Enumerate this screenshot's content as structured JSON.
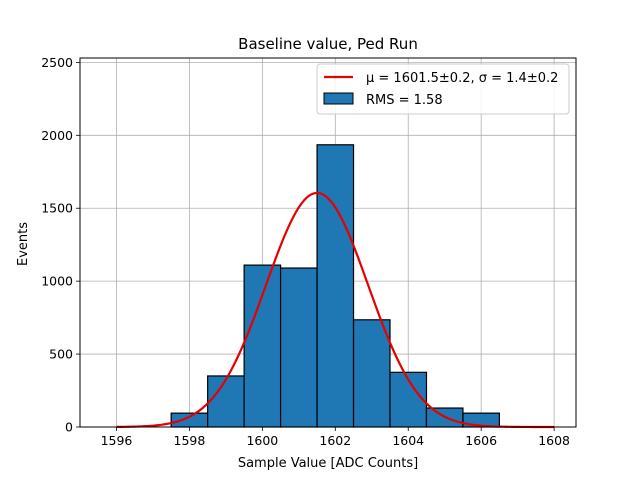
{
  "chart_data": {
    "type": "bar",
    "title": "Baseline value, Ped Run",
    "xlabel": "Sample Value [ADC Counts]",
    "ylabel": "Events",
    "xlim": [
      1595.0,
      1608.6
    ],
    "ylim": [
      0,
      2530
    ],
    "xticks": [
      1596,
      1598,
      1600,
      1602,
      1604,
      1606,
      1608
    ],
    "yticks": [
      0,
      500,
      1000,
      1500,
      2000,
      2500
    ],
    "grid": true,
    "legend_position": "top-right",
    "colors": {
      "bars": "#1f77b4",
      "fit": "#e60000",
      "edge": "#000000",
      "grid": "#b0b0b0"
    },
    "histogram": {
      "name": "RMS = 1.58",
      "bin_edges": [
        1597.5,
        1598.5,
        1599.5,
        1600.5,
        1601.5,
        1602.5,
        1603.5,
        1604.5,
        1605.5,
        1606.5
      ],
      "counts": [
        95,
        350,
        1110,
        1090,
        1935,
        735,
        375,
        130,
        95
      ]
    },
    "fit": {
      "name": "μ = 1601.5±0.2, σ = 1.4±0.2",
      "mu": 1601.5,
      "sigma": 1.4,
      "amplitude": 1605,
      "x_range": [
        1596,
        1608
      ]
    }
  }
}
